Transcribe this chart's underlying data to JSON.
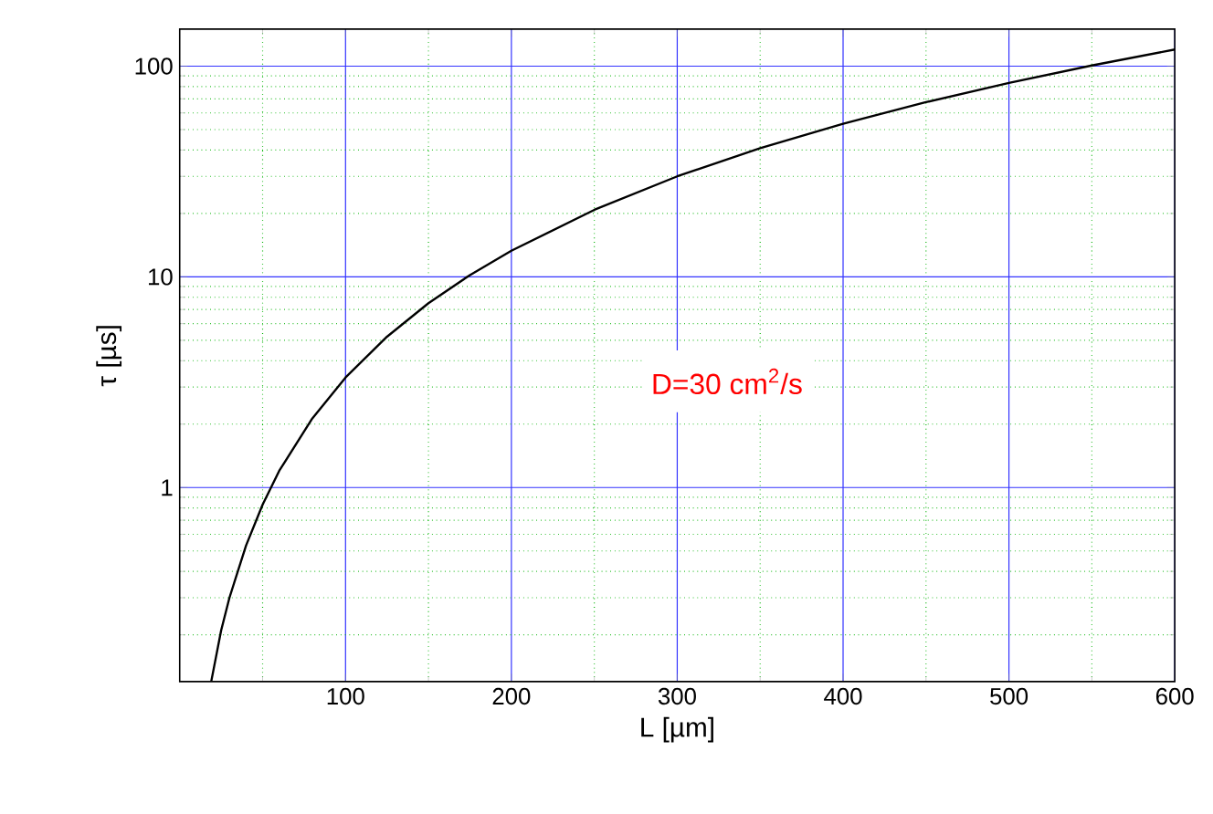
{
  "chart_data": {
    "type": "line",
    "xlabel": "L [µm]",
    "ylabel": "τ [µs]",
    "annotations": [
      "D=30 cm$^{2}$/s"
    ],
    "x": [
      19,
      25,
      30,
      40,
      50,
      60,
      80,
      100,
      125,
      150,
      175,
      200,
      250,
      300,
      350,
      400,
      450,
      500,
      550,
      600
    ],
    "series": [
      {
        "color": "#000000",
        "values": [
          0.12,
          0.21,
          0.3,
          0.53,
          0.83,
          1.2,
          2.13,
          3.33,
          5.2,
          7.5,
          10.2,
          13.3,
          20.8,
          30,
          40.8,
          53.3,
          67.5,
          83.3,
          100.8,
          120
        ]
      }
    ],
    "xlim": [
      0,
      600
    ],
    "ylim": [
      0.12,
      150
    ],
    "log": "y",
    "grid": true,
    "marker": "none",
    "line_style": "solid",
    "xticks": [
      {
        "value": 50,
        "label": null
      },
      100,
      {
        "value": 150,
        "label": null
      },
      200,
      {
        "value": 250,
        "label": null
      },
      300,
      {
        "value": 350,
        "label": null
      },
      400,
      {
        "value": 450,
        "label": null
      },
      500,
      {
        "value": 550,
        "label": null
      },
      600
    ],
    "yticks": [
      {
        "value": 0.2,
        "label": null
      },
      {
        "value": 0.3,
        "label": null
      },
      {
        "value": 0.4,
        "label": null
      },
      {
        "value": 0.5,
        "label": null
      },
      {
        "value": 0.6,
        "label": null
      },
      {
        "value": 0.7,
        "label": null
      },
      {
        "value": 0.8,
        "label": null
      },
      {
        "value": 0.9,
        "label": null
      },
      1,
      {
        "value": 2,
        "label": null
      },
      {
        "value": 3,
        "label": null
      },
      {
        "value": 4,
        "label": null
      },
      {
        "value": 5,
        "label": null
      },
      {
        "value": 6,
        "label": null
      },
      {
        "value": 7,
        "label": null
      },
      {
        "value": 8,
        "label": null
      },
      {
        "value": 9,
        "label": null
      },
      10,
      {
        "value": 20,
        "label": null
      },
      {
        "value": 30,
        "label": null
      },
      {
        "value": 40,
        "label": null
      },
      {
        "value": 50,
        "label": null
      },
      {
        "value": 60,
        "label": null
      },
      {
        "value": 70,
        "label": null
      },
      {
        "value": 80,
        "label": null
      },
      {
        "value": 90,
        "label": null
      },
      100
    ]
  }
}
